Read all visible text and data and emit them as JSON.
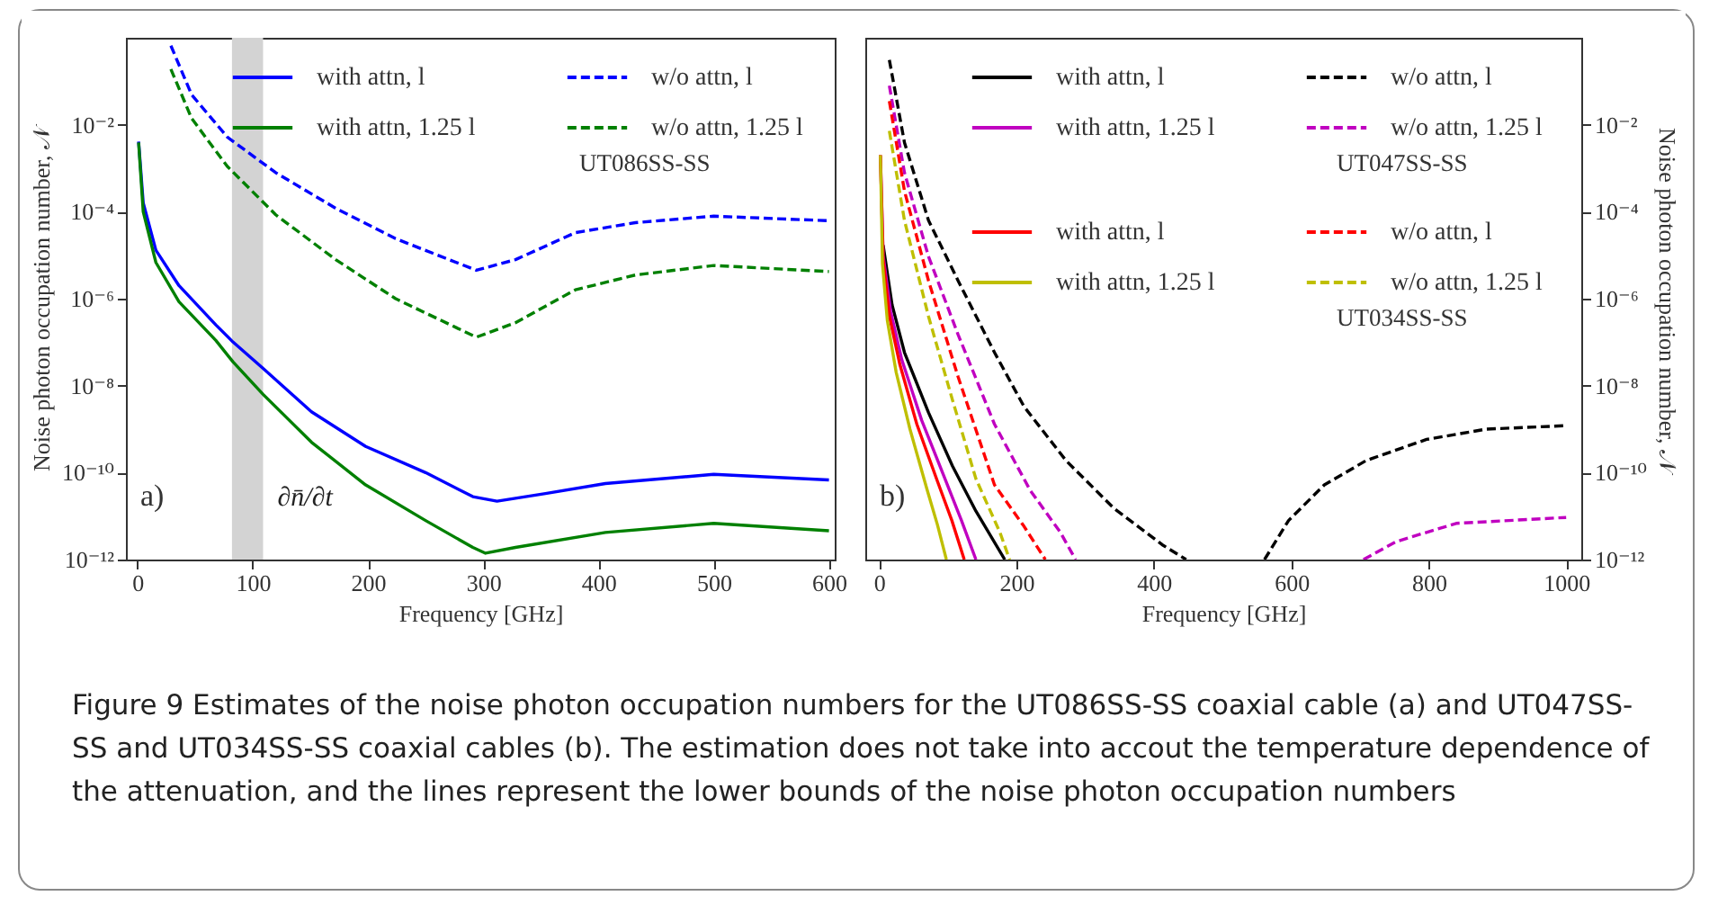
{
  "chart_data": [
    {
      "type": "line",
      "xlabel": "Frequency [GHz]",
      "ylabel": "Noise photon occupation number, 𝒩",
      "xlim": [
        -10,
        605
      ],
      "xticks": [
        0,
        100,
        200,
        300,
        400,
        500,
        600
      ],
      "ylim": [
        1e-12,
        1
      ],
      "yticks": [
        {
          "value": 0.01,
          "label": "10⁻²"
        },
        {
          "value": 0.0001,
          "label": "10⁻⁴"
        },
        {
          "value": 1e-06,
          "label": "10⁻⁶"
        },
        {
          "value": 1e-08,
          "label": "10⁻⁸"
        },
        {
          "value": 1e-10,
          "label": "10⁻¹⁰"
        },
        {
          "value": 1e-12,
          "label": "10⁻¹²"
        }
      ],
      "log": "y",
      "legend": "top right",
      "annotations": [
        "a)",
        "UT086SS-SS"
      ],
      "bands": [
        {
          "axis": "x",
          "from": 82,
          "to": 109,
          "label": "∂n̄/∂t",
          "color": "#d3d3d3"
        }
      ],
      "series": [
        {
          "name": "with attn, l",
          "color": "#0000ff",
          "line_style": "solid",
          "x": [
            1,
            5,
            16,
            36,
            68,
            83,
            109,
            151,
            198,
            250,
            291,
            312,
            354,
            406,
            500,
            600
          ],
          "values": [
            0.0041,
            0.00016,
            1.3e-05,
            2e-06,
            2.5e-07,
            1e-07,
            2.5e-08,
            2.5e-09,
            4e-10,
            1e-10,
            2.8e-11,
            2.2e-11,
            3.3e-11,
            5.6e-11,
            9.1e-11,
            6.8e-11
          ]
        },
        {
          "name": "w/o attn, l",
          "color": "#0000ff",
          "line_style": "dashed",
          "x": [
            29,
            47,
            78,
            120,
            172,
            224,
            294,
            328,
            380,
            432,
            500,
            600
          ],
          "values": [
            0.66,
            0.049,
            0.0052,
            0.00079,
            0.00012,
            2.4e-05,
            4.5e-06,
            7.9e-06,
            3.3e-05,
            5.6e-05,
            7.9e-05,
            6.2e-05
          ]
        },
        {
          "name": "with attn, 1.25 l",
          "color": "#008000",
          "line_style": "solid",
          "x": [
            1,
            5,
            16,
            36,
            68,
            83,
            109,
            151,
            198,
            250,
            291,
            302,
            328,
            406,
            500,
            600
          ],
          "values": [
            0.0039,
            0.0001,
            6.8e-06,
            8.5e-07,
            1.1e-07,
            3.5e-08,
            6.3e-09,
            5e-10,
            5.2e-11,
            7.9e-12,
            1.9e-12,
            1.4e-12,
            1.9e-12,
            4.2e-12,
            6.8e-12,
            4.6e-12
          ]
        },
        {
          "name": "w/o attn, 1.25 l",
          "color": "#008000",
          "line_style": "dashed",
          "x": [
            29,
            47,
            78,
            120,
            172,
            224,
            294,
            328,
            380,
            432,
            500,
            600
          ],
          "values": [
            0.19,
            0.014,
            0.0011,
            8.5e-05,
            7.9e-06,
            1e-06,
            1.3e-07,
            2.8e-07,
            1.6e-06,
            3.5e-06,
            5.8e-06,
            4.2e-06
          ]
        }
      ]
    },
    {
      "type": "line",
      "xlabel": "Frequency [GHz]",
      "ylabel": "Noise photon occupation number, 𝒩",
      "xlim": [
        -20,
        1022
      ],
      "xticks": [
        0,
        200,
        400,
        600,
        800,
        1000
      ],
      "ylim": [
        1e-12,
        1
      ],
      "yticks": [
        {
          "value": 0.01,
          "label": "10⁻²"
        },
        {
          "value": 0.0001,
          "label": "10⁻⁴"
        },
        {
          "value": 1e-06,
          "label": "10⁻⁶"
        },
        {
          "value": 1e-08,
          "label": "10⁻⁸"
        },
        {
          "value": 1e-10,
          "label": "10⁻¹⁰"
        },
        {
          "value": 1e-12,
          "label": "10⁻¹²"
        }
      ],
      "log": "y",
      "legend": "top right",
      "annotations": [
        "b)",
        "UT047SS-SS",
        "UT034SS-SS",
        "Figure 9  Estimates of the noise photon occupation numbers for the UT086SS-SS coaxial cable (a) and UT047SS-SS and UT034SS-SS coaxial cables (b). The estimation does not take into accout the temperature dependence of the attenuation, and the lines represent the lower bounds of the noise photon occupation numbers"
      ],
      "series": [
        {
          "name": "with attn, l",
          "color": "#000000",
          "line_style": "solid",
          "x": [
            6,
            19,
            37,
            72,
            107,
            141,
            183
          ],
          "values": [
            1.7e-05,
            7.2e-07,
            5.8e-08,
            2.4e-09,
            1.4e-10,
            1.3e-11,
            1e-12
          ]
        },
        {
          "name": "w/o attn, l",
          "color": "#000000",
          "line_style": "dashed",
          "x": [
            15,
            37,
            72,
            115,
            168,
            211,
            272,
            342,
            412,
            447,
            500,
            561,
            596,
            648,
            709,
            797,
            884,
            1000
          ],
          "values": [
            0.31,
            0.0039,
            6.3e-05,
            2.6e-06,
            5.8e-08,
            3.3e-09,
            1.9e-10,
            1.5e-11,
            2.2e-12,
            1e-12,
            null,
            1e-12,
            7.9e-12,
            5.2e-11,
            1.9e-10,
            5.8e-10,
            1e-09,
            1.2e-09
          ]
        },
        {
          "name": "with attn, 1.25 l",
          "color": "#c000c0",
          "line_style": "solid",
          "x": [
            2,
            6,
            17,
            33,
            62,
            95,
            120,
            141
          ],
          "values": [
            0.002,
            1e-05,
            5e-07,
            4e-08,
            1.6e-09,
            7.9e-11,
            7.9e-12,
            1e-12
          ]
        },
        {
          "name": "w/o attn, 1.25 l",
          "color": "#c000c0",
          "line_style": "dashed",
          "x": [
            15,
            37,
            72,
            115,
            168,
            220,
            264,
            286,
            500,
            705,
            753,
            840,
            1000
          ],
          "values": [
            0.079,
            0.00079,
            9.3e-06,
            1.5e-07,
            1.3e-09,
            3.9e-11,
            4.2e-12,
            1e-12,
            null,
            1e-12,
            2.6e-12,
            6.8e-12,
            9.3e-12
          ]
        },
        {
          "name": "with attn, l",
          "color": "#ff0000",
          "line_style": "solid",
          "x": [
            2,
            6,
            15,
            30,
            55,
            85,
            106,
            124
          ],
          "values": [
            0.002,
            7.9e-06,
            4e-07,
            3.2e-08,
            1.3e-09,
            6.3e-11,
            7.9e-12,
            1e-12
          ]
        },
        {
          "name": "w/o attn, l",
          "color": "#ff0000",
          "line_style": "dashed",
          "x": [
            15,
            37,
            72,
            115,
            168,
            211,
            242
          ],
          "values": [
            0.035,
            0.0003,
            2.6e-06,
            1.6e-08,
            5.2e-11,
            5.8e-12,
            1e-12
          ]
        },
        {
          "name": "with attn, 1.25 l",
          "color": "#bfbf00",
          "line_style": "solid",
          "x": [
            2,
            5,
            12,
            25,
            45,
            70,
            85,
            98
          ],
          "values": [
            0.002,
            6.3e-06,
            3.2e-07,
            2e-08,
            1e-09,
            4e-11,
            6.3e-12,
            1e-12
          ]
        },
        {
          "name": "w/o attn, 1.25 l",
          "color": "#bfbf00",
          "line_style": "dashed",
          "x": [
            15,
            37,
            72,
            107,
            141,
            176,
            190
          ],
          "values": [
            0.0072,
            6.3e-05,
            3.9e-07,
            4.6e-09,
            7.2e-11,
            4.2e-12,
            1e-12
          ]
        }
      ]
    }
  ]
}
